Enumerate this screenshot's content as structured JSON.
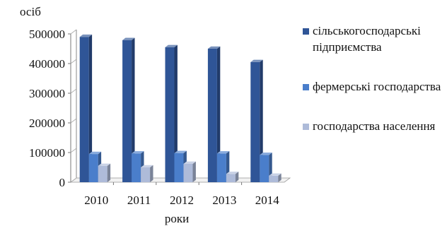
{
  "chart_data": {
    "type": "bar",
    "title": "",
    "ylabel": "осіб",
    "xlabel": "роки",
    "categories": [
      "2010",
      "2011",
      "2012",
      "2013",
      "2014"
    ],
    "ylim": [
      0,
      500000
    ],
    "yticks": [
      0,
      100000,
      200000,
      300000,
      400000,
      500000
    ],
    "ytick_labels": [
      "0",
      "100000",
      "200000",
      "300000",
      "400000",
      "500000"
    ],
    "series": [
      {
        "name": "сільськогосподарські підприємства",
        "color": "#2f5597",
        "values": [
          490000,
          479000,
          455000,
          450000,
          405000
        ]
      },
      {
        "name": "фермерські господарства",
        "color": "#4a7ecb",
        "values": [
          95000,
          97000,
          98000,
          97000,
          92000
        ]
      },
      {
        "name": "господарства населення",
        "color": "#aebbd9",
        "values": [
          55000,
          50000,
          62000,
          28000,
          22000
        ]
      }
    ],
    "legend_position": "right",
    "grid": false,
    "style": "3d-bars"
  }
}
